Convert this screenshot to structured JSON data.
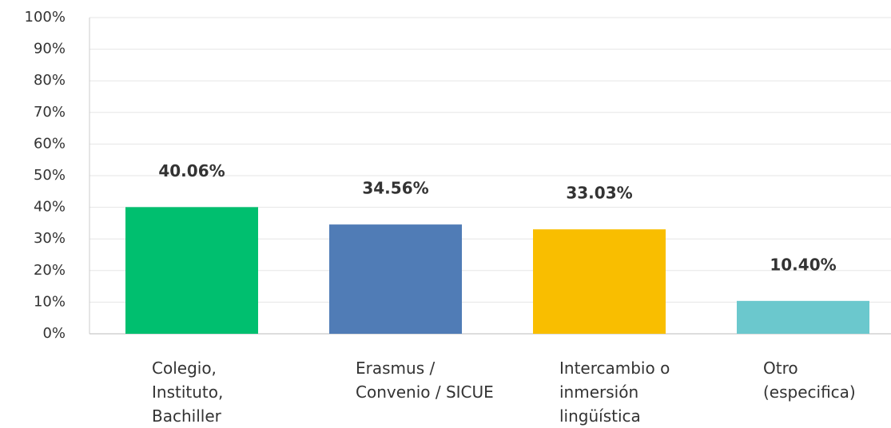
{
  "chart_data": {
    "type": "bar",
    "categories": [
      "Colegio,\nInstituto,\nBachiller",
      "Erasmus /\nConvenio / SICUE",
      "Intercambio o\ninmersión\nlingüística",
      "Otro\n(especifica)"
    ],
    "values": [
      40.06,
      34.56,
      33.03,
      10.4
    ],
    "value_labels": [
      "40.06%",
      "34.56%",
      "33.03%",
      "10.40%"
    ],
    "colors": [
      "#00bf6f",
      "#507cb6",
      "#f9be00",
      "#6bc8cd"
    ],
    "ylim": [
      0,
      100
    ],
    "yticks": [
      {
        "value": 0,
        "label": "0%"
      },
      {
        "value": 10,
        "label": "10%"
      },
      {
        "value": 20,
        "label": "20%"
      },
      {
        "value": 30,
        "label": "30%"
      },
      {
        "value": 40,
        "label": "40%"
      },
      {
        "value": 50,
        "label": "50%"
      },
      {
        "value": 60,
        "label": "60%"
      },
      {
        "value": 70,
        "label": "70%"
      },
      {
        "value": 80,
        "label": "80%"
      },
      {
        "value": 90,
        "label": "90%"
      },
      {
        "value": 100,
        "label": "100%"
      }
    ],
    "grid": true
  }
}
